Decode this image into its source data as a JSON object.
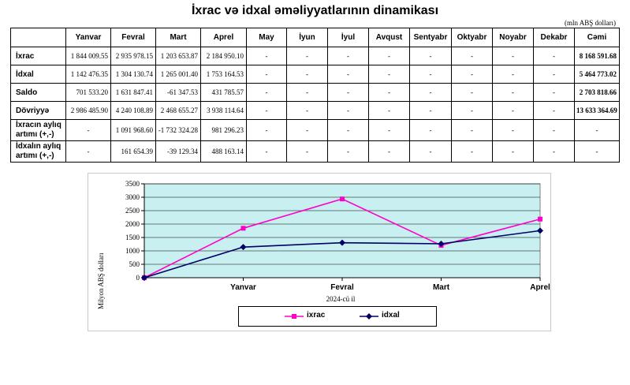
{
  "title": "İxrac və idxal əməliyyatlarının dinamikası",
  "unit": "(mln ABŞ dolları)",
  "table": {
    "headers": [
      "",
      "Yanvar",
      "Fevral",
      "Mart",
      "Aprel",
      "May",
      "İyun",
      "İyul",
      "Avqust",
      "Sentyabr",
      "Oktyabr",
      "Noyabr",
      "Dekabr",
      "Cəmi"
    ],
    "rows": [
      {
        "label": "İxrac",
        "cells": [
          "1 844 009.55",
          "2 935 978.15",
          "1 203 653.87",
          "2 184 950.10",
          "-",
          "-",
          "-",
          "-",
          "-",
          "-",
          "-",
          "-"
        ],
        "total": "8 168 591.68"
      },
      {
        "label": "İdxal",
        "cells": [
          "1 142 476.35",
          "1 304 130.74",
          "1 265 001.40",
          "1 753 164.53",
          "-",
          "-",
          "-",
          "-",
          "-",
          "-",
          "-",
          "-"
        ],
        "total": "5 464 773.02"
      },
      {
        "label": "Saldo",
        "cells": [
          "701 533.20",
          "1 631 847.41",
          "-61 347.53",
          "431 785.57",
          "-",
          "-",
          "-",
          "-",
          "-",
          "-",
          "-",
          "-"
        ],
        "total": "2 703 818.66"
      },
      {
        "label": "Dövriyyə",
        "cells": [
          "2 986 485.90",
          "4 240 108.89",
          "2 468 655.27",
          "3 938 114.64",
          "-",
          "-",
          "-",
          "-",
          "-",
          "-",
          "-",
          "-"
        ],
        "total": "13 633 364.69"
      },
      {
        "label": "İxracın aylıq artımı (+,-)",
        "cells": [
          "-",
          "1 091 968.60",
          "-1 732 324.28",
          "981 296.23",
          "-",
          "-",
          "-",
          "-",
          "-",
          "-",
          "-",
          "-"
        ],
        "total": "-"
      },
      {
        "label": "İdxalın aylıq artımı (+,-)",
        "cells": [
          "-",
          "161 654.39",
          "-39 129.34",
          "488 163.14",
          "-",
          "-",
          "-",
          "-",
          "-",
          "-",
          "-",
          "-"
        ],
        "total": "-"
      }
    ]
  },
  "chart_data": {
    "type": "line",
    "categories": [
      "",
      "Yanvar",
      "Fevral",
      "Mart",
      "Aprel"
    ],
    "series": [
      {
        "name": "ixrac",
        "values": [
          0,
          1844.01,
          2935.98,
          1203.65,
          2184.95
        ],
        "color": "#ff00cc",
        "marker": "square"
      },
      {
        "name": "idxal",
        "values": [
          0,
          1142.48,
          1304.13,
          1265.0,
          1753.16
        ],
        "color": "#000066",
        "marker": "diamond"
      }
    ],
    "ylabel": "Milyon ABŞ dolları",
    "xlabel": "2024-cü il",
    "ylim": [
      0,
      3500
    ],
    "yticks": [
      0,
      500,
      1000,
      1500,
      2000,
      2500,
      3000,
      3500
    ],
    "grid": true,
    "plot_background": "#c8f0f0",
    "legend_position": "bottom"
  }
}
